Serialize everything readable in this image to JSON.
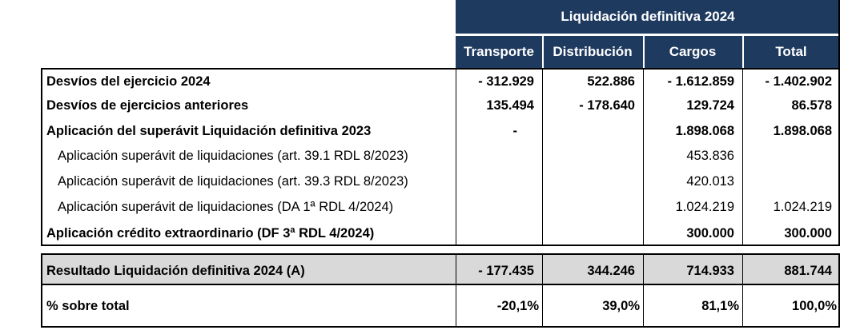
{
  "header": {
    "group_title": "Liquidación definitiva 2024",
    "columns": [
      "Transporte",
      "Distribución",
      "Cargos",
      "Total"
    ]
  },
  "rows": [
    {
      "label": "Desvíos del ejercicio 2024",
      "bold": true,
      "indent": false,
      "values": [
        "- 312.929",
        "522.886",
        "- 1.612.859",
        "- 1.402.902"
      ]
    },
    {
      "label": "Desvíos de ejercicios anteriores",
      "bold": true,
      "indent": false,
      "values": [
        "135.494",
        "- 178.640",
        "129.724",
        "86.578"
      ]
    },
    {
      "label": "Aplicación del superávit Liquidación definitiva 2023",
      "bold": true,
      "indent": false,
      "values": [
        "-",
        "",
        "1.898.068",
        "1.898.068"
      ]
    },
    {
      "label": "Aplicación superávit de liquidaciones (art. 39.1 RDL 8/2023)",
      "bold": false,
      "indent": true,
      "values": [
        "",
        "",
        "453.836",
        ""
      ]
    },
    {
      "label": "Aplicación superávit de liquidaciones (art. 39.3 RDL 8/2023)",
      "bold": false,
      "indent": true,
      "values": [
        "",
        "",
        "420.013",
        ""
      ]
    },
    {
      "label": "Aplicación superávit de liquidaciones (DA 1ª RDL 4/2024)",
      "bold": false,
      "indent": true,
      "values": [
        "",
        "",
        "1.024.219",
        "1.024.219"
      ]
    },
    {
      "label": "Aplicación crédito extraordinario (DF 3ª RDL 4/2024)",
      "bold": true,
      "indent": false,
      "values": [
        "",
        "",
        "300.000",
        "300.000"
      ]
    }
  ],
  "result_row": {
    "label": "Resultado Liquidación definitiva 2024 (A)",
    "values": [
      "- 177.435",
      "344.246",
      "714.933",
      "881.744"
    ]
  },
  "percent_row": {
    "label": "% sobre total",
    "values": [
      "-20,1%",
      "39,0%",
      "81,1%",
      "100,0%"
    ]
  },
  "colors": {
    "header_bg": "#1e3a5f",
    "header_text": "#ffffff",
    "result_bg": "#d9d9d9"
  }
}
